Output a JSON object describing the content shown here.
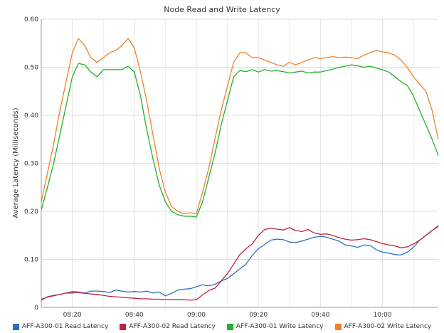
{
  "chart_data": {
    "type": "line",
    "title": "Node Read and Write Latency",
    "xlabel": "",
    "ylabel": "Average Latency (Milliseconds)",
    "ylim": [
      0,
      0.6
    ],
    "xlim": [
      "08:10",
      "10:18"
    ],
    "y_ticks": [
      "0",
      "0.10",
      "0.20",
      "0.30",
      "0.40",
      "0.50",
      "0.60"
    ],
    "y_tick_values": [
      0,
      0.1,
      0.2,
      0.3,
      0.4,
      0.5,
      0.6
    ],
    "x_ticks": [
      "08:20",
      "08:40",
      "09:00",
      "09:20",
      "09:40",
      "10:00"
    ],
    "grid": true,
    "legend_position": "bottom",
    "series": [
      {
        "name": "AFF-A300-01 Read Latency",
        "color": "#2e6fc0",
        "x": [
          "08:10",
          "08:12",
          "08:14",
          "08:16",
          "08:18",
          "08:20",
          "08:22",
          "08:24",
          "08:26",
          "08:28",
          "08:30",
          "08:32",
          "08:34",
          "08:36",
          "08:38",
          "08:40",
          "08:42",
          "08:44",
          "08:46",
          "08:48",
          "08:50",
          "08:52",
          "08:54",
          "08:56",
          "08:58",
          "09:00",
          "09:02",
          "09:04",
          "09:06",
          "09:08",
          "09:10",
          "09:12",
          "09:14",
          "09:16",
          "09:18",
          "09:20",
          "09:22",
          "09:24",
          "09:26",
          "09:28",
          "09:30",
          "09:32",
          "09:34",
          "09:36",
          "09:38",
          "09:40",
          "09:42",
          "09:44",
          "09:46",
          "09:48",
          "09:50",
          "09:52",
          "09:54",
          "09:56",
          "09:58",
          "10:00",
          "10:02",
          "10:04",
          "10:06",
          "10:08",
          "10:10",
          "10:12",
          "10:14",
          "10:16",
          "10:18"
        ],
        "values": [
          0.017,
          0.021,
          0.024,
          0.027,
          0.03,
          0.033,
          0.032,
          0.03,
          0.034,
          0.034,
          0.033,
          0.031,
          0.036,
          0.034,
          0.032,
          0.033,
          0.032,
          0.034,
          0.03,
          0.032,
          0.024,
          0.029,
          0.036,
          0.038,
          0.039,
          0.043,
          0.047,
          0.045,
          0.048,
          0.055,
          0.06,
          0.07,
          0.08,
          0.09,
          0.108,
          0.122,
          0.131,
          0.14,
          0.142,
          0.141,
          0.136,
          0.135,
          0.138,
          0.142,
          0.146,
          0.148,
          0.146,
          0.142,
          0.138,
          0.13,
          0.128,
          0.125,
          0.13,
          0.129,
          0.12,
          0.115,
          0.113,
          0.11,
          0.109,
          0.115,
          0.125,
          0.14,
          0.15,
          0.16,
          0.168
        ]
      },
      {
        "name": "AFF-A300-02 Read Latency",
        "color": "#c2203e",
        "x": [
          "08:10",
          "08:12",
          "08:14",
          "08:16",
          "08:18",
          "08:20",
          "08:22",
          "08:24",
          "08:26",
          "08:28",
          "08:30",
          "08:32",
          "08:34",
          "08:36",
          "08:38",
          "08:40",
          "08:42",
          "08:44",
          "08:46",
          "08:48",
          "08:50",
          "08:52",
          "08:54",
          "08:56",
          "08:58",
          "09:00",
          "09:02",
          "09:04",
          "09:06",
          "09:08",
          "09:10",
          "09:12",
          "09:14",
          "09:16",
          "09:18",
          "09:20",
          "09:22",
          "09:24",
          "09:26",
          "09:28",
          "09:30",
          "09:32",
          "09:34",
          "09:36",
          "09:38",
          "09:40",
          "09:42",
          "09:44",
          "09:46",
          "09:48",
          "09:50",
          "09:52",
          "09:54",
          "09:56",
          "09:58",
          "10:00",
          "10:02",
          "10:04",
          "10:06",
          "10:08",
          "10:10",
          "10:12",
          "10:14",
          "10:16",
          "10:18"
        ],
        "values": [
          0.015,
          0.022,
          0.025,
          0.027,
          0.03,
          0.03,
          0.031,
          0.029,
          0.028,
          0.027,
          0.025,
          0.023,
          0.022,
          0.021,
          0.02,
          0.019,
          0.018,
          0.018,
          0.017,
          0.017,
          0.016,
          0.016,
          0.016,
          0.016,
          0.015,
          0.016,
          0.026,
          0.035,
          0.04,
          0.055,
          0.07,
          0.09,
          0.11,
          0.122,
          0.132,
          0.15,
          0.162,
          0.165,
          0.163,
          0.161,
          0.166,
          0.16,
          0.158,
          0.162,
          0.155,
          0.152,
          0.153,
          0.15,
          0.145,
          0.142,
          0.14,
          0.141,
          0.143,
          0.141,
          0.137,
          0.133,
          0.13,
          0.128,
          0.124,
          0.126,
          0.132,
          0.14,
          0.15,
          0.16,
          0.17
        ]
      },
      {
        "name": "AFF-A300-01 Write Latency",
        "color": "#22b02a",
        "x": [
          "08:10",
          "08:12",
          "08:14",
          "08:16",
          "08:18",
          "08:20",
          "08:22",
          "08:24",
          "08:26",
          "08:28",
          "08:30",
          "08:32",
          "08:34",
          "08:36",
          "08:38",
          "08:40",
          "08:42",
          "08:44",
          "08:46",
          "08:48",
          "08:50",
          "08:52",
          "08:54",
          "08:56",
          "08:58",
          "09:00",
          "09:02",
          "09:04",
          "09:06",
          "09:08",
          "09:10",
          "09:12",
          "09:14",
          "09:16",
          "09:18",
          "09:20",
          "09:22",
          "09:24",
          "09:26",
          "09:28",
          "09:30",
          "09:32",
          "09:34",
          "09:36",
          "09:38",
          "09:40",
          "09:42",
          "09:44",
          "09:46",
          "09:48",
          "09:50",
          "09:52",
          "09:54",
          "09:56",
          "09:58",
          "10:00",
          "10:02",
          "10:04",
          "10:06",
          "10:08",
          "10:10",
          "10:12",
          "10:14",
          "10:16",
          "10:18"
        ],
        "values": [
          0.203,
          0.25,
          0.3,
          0.36,
          0.42,
          0.48,
          0.508,
          0.505,
          0.49,
          0.48,
          0.495,
          0.495,
          0.495,
          0.495,
          0.502,
          0.49,
          0.44,
          0.37,
          0.31,
          0.255,
          0.22,
          0.2,
          0.193,
          0.19,
          0.19,
          0.188,
          0.22,
          0.27,
          0.32,
          0.38,
          0.43,
          0.48,
          0.493,
          0.491,
          0.495,
          0.49,
          0.495,
          0.492,
          0.493,
          0.491,
          0.488,
          0.49,
          0.492,
          0.488,
          0.49,
          0.49,
          0.493,
          0.496,
          0.5,
          0.502,
          0.505,
          0.503,
          0.5,
          0.502,
          0.498,
          0.495,
          0.49,
          0.48,
          0.47,
          0.462,
          0.44,
          0.41,
          0.38,
          0.35,
          0.316
        ]
      },
      {
        "name": "AFF-A300-02 Write Latency",
        "color": "#f0802a",
        "x": [
          "08:10",
          "08:12",
          "08:14",
          "08:16",
          "08:18",
          "08:20",
          "08:22",
          "08:24",
          "08:26",
          "08:28",
          "08:30",
          "08:32",
          "08:34",
          "08:36",
          "08:38",
          "08:40",
          "08:42",
          "08:44",
          "08:46",
          "08:48",
          "08:50",
          "08:52",
          "08:54",
          "08:56",
          "08:58",
          "09:00",
          "09:02",
          "09:04",
          "09:06",
          "09:08",
          "09:10",
          "09:12",
          "09:14",
          "09:16",
          "09:18",
          "09:20",
          "09:22",
          "09:24",
          "09:26",
          "09:28",
          "09:30",
          "09:32",
          "09:34",
          "09:36",
          "09:38",
          "09:40",
          "09:42",
          "09:44",
          "09:46",
          "09:48",
          "09:50",
          "09:52",
          "09:54",
          "09:56",
          "09:58",
          "10:00",
          "10:02",
          "10:04",
          "10:06",
          "10:08",
          "10:10",
          "10:12",
          "10:14",
          "10:16",
          "10:18"
        ],
        "values": [
          0.22,
          0.28,
          0.34,
          0.41,
          0.47,
          0.53,
          0.56,
          0.545,
          0.52,
          0.51,
          0.52,
          0.53,
          0.535,
          0.545,
          0.56,
          0.54,
          0.49,
          0.43,
          0.36,
          0.29,
          0.24,
          0.21,
          0.2,
          0.195,
          0.197,
          0.195,
          0.24,
          0.29,
          0.35,
          0.41,
          0.46,
          0.51,
          0.53,
          0.53,
          0.52,
          0.52,
          0.515,
          0.51,
          0.505,
          0.502,
          0.51,
          0.505,
          0.51,
          0.515,
          0.52,
          0.518,
          0.52,
          0.522,
          0.52,
          0.521,
          0.52,
          0.518,
          0.525,
          0.53,
          0.535,
          0.532,
          0.53,
          0.525,
          0.515,
          0.5,
          0.48,
          0.465,
          0.45,
          0.41,
          0.35
        ]
      }
    ]
  }
}
